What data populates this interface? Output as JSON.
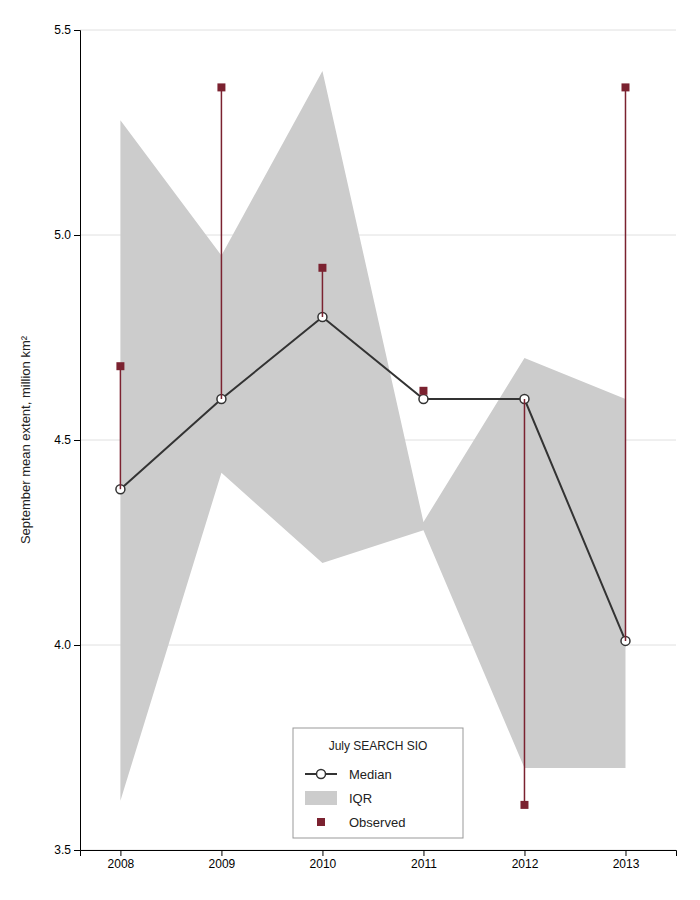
{
  "chart_data": {
    "type": "line",
    "y_label": "September mean extent, million km²",
    "legend_title": "July SEARCH SIO",
    "x": [
      2008,
      2009,
      2010,
      2011,
      2012,
      2013
    ],
    "xlim": [
      2007.6,
      2013.5
    ],
    "xticks": [
      2008,
      2009,
      2010,
      2011,
      2012,
      2013
    ],
    "ylim": [
      3.5,
      5.5
    ],
    "yticks": [
      3.5,
      {
        "value": 4,
        "label": "4.0"
      },
      4.5,
      {
        "value": 5,
        "label": "5.0"
      },
      5.5
    ],
    "grid": "y",
    "legend": "lower center",
    "series": [
      {
        "name": "Median",
        "type": "line",
        "marker": "circle",
        "color": "#333333",
        "values": [
          4.38,
          4.6,
          4.8,
          4.6,
          4.6,
          4.01
        ]
      },
      {
        "name": "IQR",
        "type": "area",
        "color": "#cccccc",
        "lower": [
          3.62,
          4.42,
          4.2,
          4.28,
          3.7,
          3.7
        ],
        "upper": [
          5.28,
          4.95,
          5.4,
          4.3,
          4.7,
          4.6
        ]
      },
      {
        "name": "Observed",
        "type": "scatter",
        "marker": "square",
        "color": "#7b2230",
        "values": [
          4.68,
          5.36,
          4.92,
          4.62,
          3.61,
          5.36
        ],
        "stem_bottom": [
          4.38,
          4.6,
          4.8,
          4.62,
          3.61,
          4.01
        ],
        "stem_top": [
          4.68,
          5.36,
          4.92,
          4.62,
          4.6,
          5.36
        ]
      }
    ]
  }
}
